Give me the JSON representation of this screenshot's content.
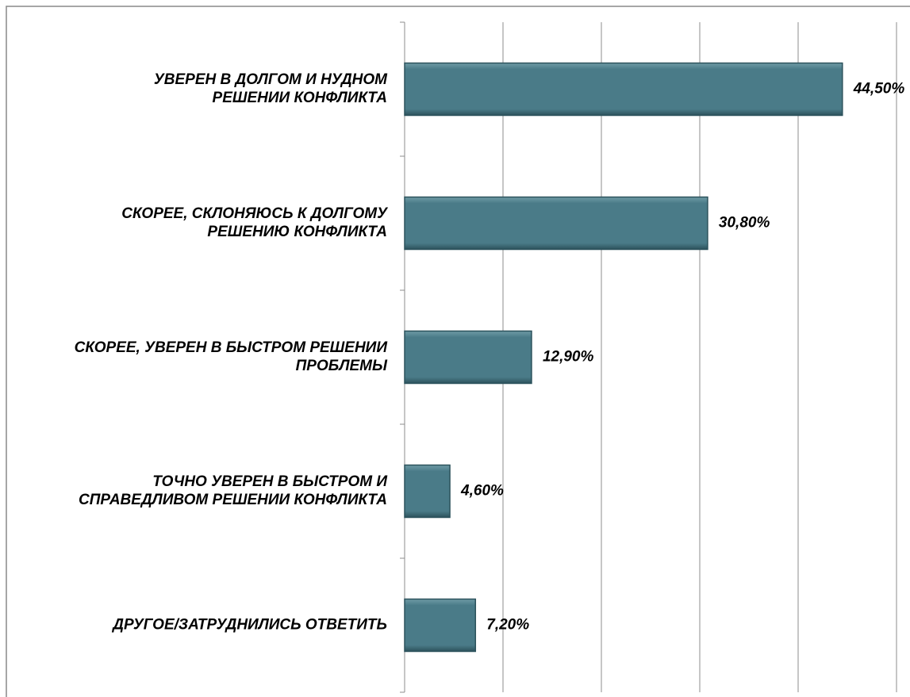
{
  "chart_data": {
    "type": "bar",
    "orientation": "horizontal",
    "categories": [
      "УВЕРЕН В ДОЛГОМ И НУДНОМ\nРЕШЕНИИ КОНФЛИКТА",
      "СКОРЕЕ, СКЛОНЯЮСЬ К ДОЛГОМУ\nРЕШЕНИЮ КОНФЛИКТА",
      "СКОРЕЕ, УВЕРЕН В БЫСТРОМ РЕШЕНИИ\nПРОБЛЕМЫ",
      "ТОЧНО УВЕРЕН В БЫСТРОМ И\nСПРАВЕДЛИВОМ РЕШЕНИИ КОНФЛИКТА",
      "ДРУГОЕ/ЗАТРУДНИЛИСЬ ОТВЕТИТЬ"
    ],
    "values": [
      44.5,
      30.8,
      12.9,
      4.6,
      7.2
    ],
    "value_labels": [
      "44,50%",
      "30,80%",
      "12,90%",
      "4,60%",
      "7,20%"
    ],
    "color": "#4a7b88",
    "xlim": [
      0,
      50
    ],
    "xticks": [
      0,
      10,
      20,
      30,
      40,
      50
    ],
    "grid": true
  }
}
